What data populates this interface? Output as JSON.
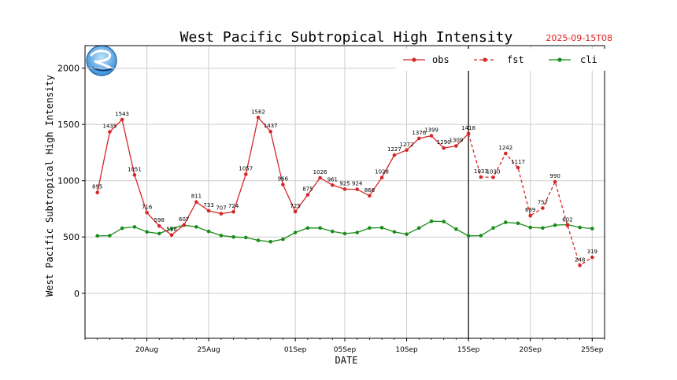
{
  "chart_data": {
    "type": "line",
    "title": "West Pacific Subtropical High Intensity",
    "issue_time": "2025-09-15T08",
    "xlabel": "DATE",
    "ylabel": "West Pacific Subtropical High Intensity",
    "ylim": [
      -400,
      2200
    ],
    "yticks": [
      0,
      500,
      1000,
      1500,
      2000
    ],
    "xlim": [
      "2025-08-15",
      "2025-09-26"
    ],
    "xticks": [
      {
        "date": "2025-08-20",
        "label": "20Aug"
      },
      {
        "date": "2025-08-25",
        "label": "25Aug"
      },
      {
        "date": "2025-09-01",
        "label": "01Sep"
      },
      {
        "date": "2025-09-05",
        "label": "05Sep"
      },
      {
        "date": "2025-09-10",
        "label": "10Sep"
      },
      {
        "date": "2025-09-15",
        "label": "15Sep"
      },
      {
        "date": "2025-09-20",
        "label": "20Sep"
      },
      {
        "date": "2025-09-25",
        "label": "25Sep"
      }
    ],
    "grid": true,
    "legend": "top-right",
    "forecast_start": "2025-09-15",
    "series": [
      {
        "name": "obs",
        "color": "#d62728",
        "style": "solid",
        "x": [
          "2025-08-16",
          "2025-08-17",
          "2025-08-18",
          "2025-08-19",
          "2025-08-20",
          "2025-08-21",
          "2025-08-22",
          "2025-08-23",
          "2025-08-24",
          "2025-08-25",
          "2025-08-26",
          "2025-08-27",
          "2025-08-28",
          "2025-08-29",
          "2025-08-30",
          "2025-08-31",
          "2025-09-01",
          "2025-09-02",
          "2025-09-03",
          "2025-09-04",
          "2025-09-05",
          "2025-09-06",
          "2025-09-07",
          "2025-09-08",
          "2025-09-09",
          "2025-09-10",
          "2025-09-11",
          "2025-09-12",
          "2025-09-13",
          "2025-09-14",
          "2025-09-15"
        ],
        "values": [
          895,
          1435,
          1543,
          1051,
          716,
          598,
          518,
          607,
          811,
          733,
          707,
          724,
          1057,
          1562,
          1437,
          966,
          725,
          875,
          1026,
          961,
          925,
          924,
          866,
          1028,
          1227,
          1272,
          1376,
          1399,
          1290,
          1309,
          1418
        ],
        "labels": [
          "895",
          "1435",
          "1543",
          "1051",
          "716",
          "598",
          "518",
          "607",
          "811",
          "733",
          "707",
          "724",
          "1057",
          "1562",
          "1437",
          "966",
          "725",
          "875",
          "1026",
          "961",
          "925",
          "924",
          "866",
          "1028",
          "1227",
          "1272",
          "1376",
          "1399",
          "1290",
          "1309",
          "1418"
        ]
      },
      {
        "name": "fst",
        "color": "#d62728",
        "style": "dashed",
        "x": [
          "2025-09-15",
          "2025-09-16",
          "2025-09-17",
          "2025-09-18",
          "2025-09-19",
          "2025-09-20",
          "2025-09-21",
          "2025-09-22",
          "2025-09-23",
          "2025-09-24",
          "2025-09-25"
        ],
        "values": [
          1418,
          1033,
          1030,
          1242,
          1117,
          689,
          757,
          990,
          602,
          248,
          319
        ],
        "labels": [
          "",
          "1033",
          "1030",
          "1242",
          "1117",
          "689",
          "757",
          "990",
          "602",
          "248",
          "319"
        ]
      },
      {
        "name": "cli",
        "color": "#1a8c1a",
        "style": "solid",
        "x": [
          "2025-08-16",
          "2025-08-17",
          "2025-08-18",
          "2025-08-19",
          "2025-08-20",
          "2025-08-21",
          "2025-08-22",
          "2025-08-23",
          "2025-08-24",
          "2025-08-25",
          "2025-08-26",
          "2025-08-27",
          "2025-08-28",
          "2025-08-29",
          "2025-08-30",
          "2025-08-31",
          "2025-09-01",
          "2025-09-02",
          "2025-09-03",
          "2025-09-04",
          "2025-09-05",
          "2025-09-06",
          "2025-09-07",
          "2025-09-08",
          "2025-09-09",
          "2025-09-10",
          "2025-09-11",
          "2025-09-12",
          "2025-09-13",
          "2025-09-14",
          "2025-09-15",
          "2025-09-16",
          "2025-09-17",
          "2025-09-18",
          "2025-09-19",
          "2025-09-20",
          "2025-09-21",
          "2025-09-22",
          "2025-09-23",
          "2025-09-24",
          "2025-09-25"
        ],
        "values": [
          510,
          512,
          578,
          590,
          545,
          530,
          575,
          605,
          590,
          550,
          513,
          500,
          495,
          470,
          458,
          480,
          540,
          580,
          580,
          550,
          530,
          540,
          580,
          583,
          545,
          525,
          580,
          640,
          637,
          570,
          510,
          512,
          580,
          630,
          622,
          585,
          580,
          605,
          610,
          585,
          575
        ]
      }
    ]
  }
}
